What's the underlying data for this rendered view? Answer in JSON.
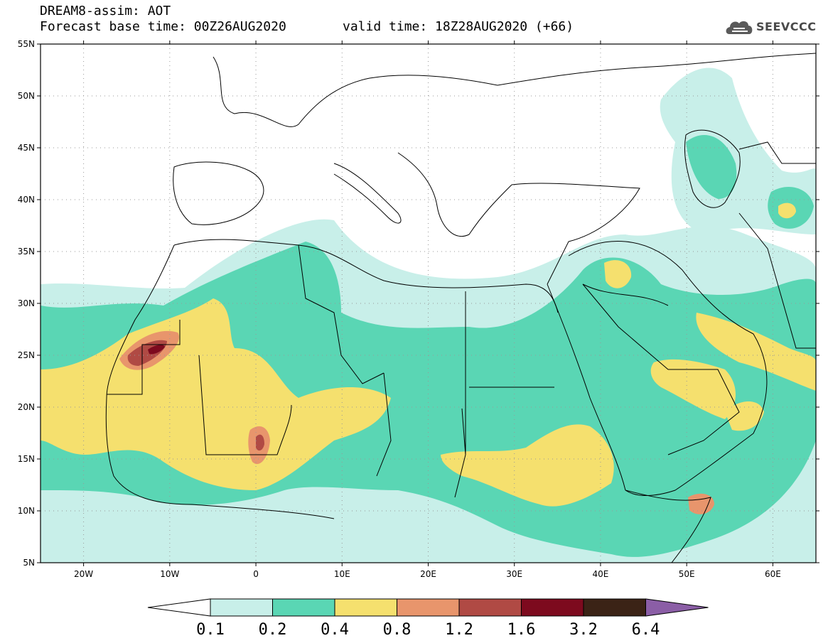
{
  "header": {
    "title_line1": "DREAM8-assim: AOT",
    "title_line2": "Forecast base time: 00Z26AUG2020",
    "valid_time": "valid time: 18Z28AUG2020 (+66)",
    "logo_text": "SEEVCCC"
  },
  "axes": {
    "lat_labels": [
      "55N",
      "50N",
      "45N",
      "40N",
      "35N",
      "30N",
      "25N",
      "20N",
      "15N",
      "10N",
      "5N"
    ],
    "lon_labels": [
      "20W",
      "10W",
      "0",
      "10E",
      "20E",
      "30E",
      "40E",
      "50E",
      "60E"
    ]
  },
  "colorbar": {
    "labels": [
      "0.1",
      "0.2",
      "0.4",
      "0.8",
      "1.2",
      "1.6",
      "3.2",
      "6.4"
    ],
    "colors": [
      "#ffffff",
      "#c8efe9",
      "#5ad6b4",
      "#f5e06e",
      "#e8956c",
      "#b04a44",
      "#7d0a1e",
      "#3b2316",
      "#8b5ea6"
    ]
  },
  "map_colors": {
    "c1": "#c8efe9",
    "c2": "#5ad6b4",
    "c3": "#f5e06e",
    "c4": "#e8956c",
    "c5": "#b04a44",
    "c6": "#7d0a1e"
  }
}
